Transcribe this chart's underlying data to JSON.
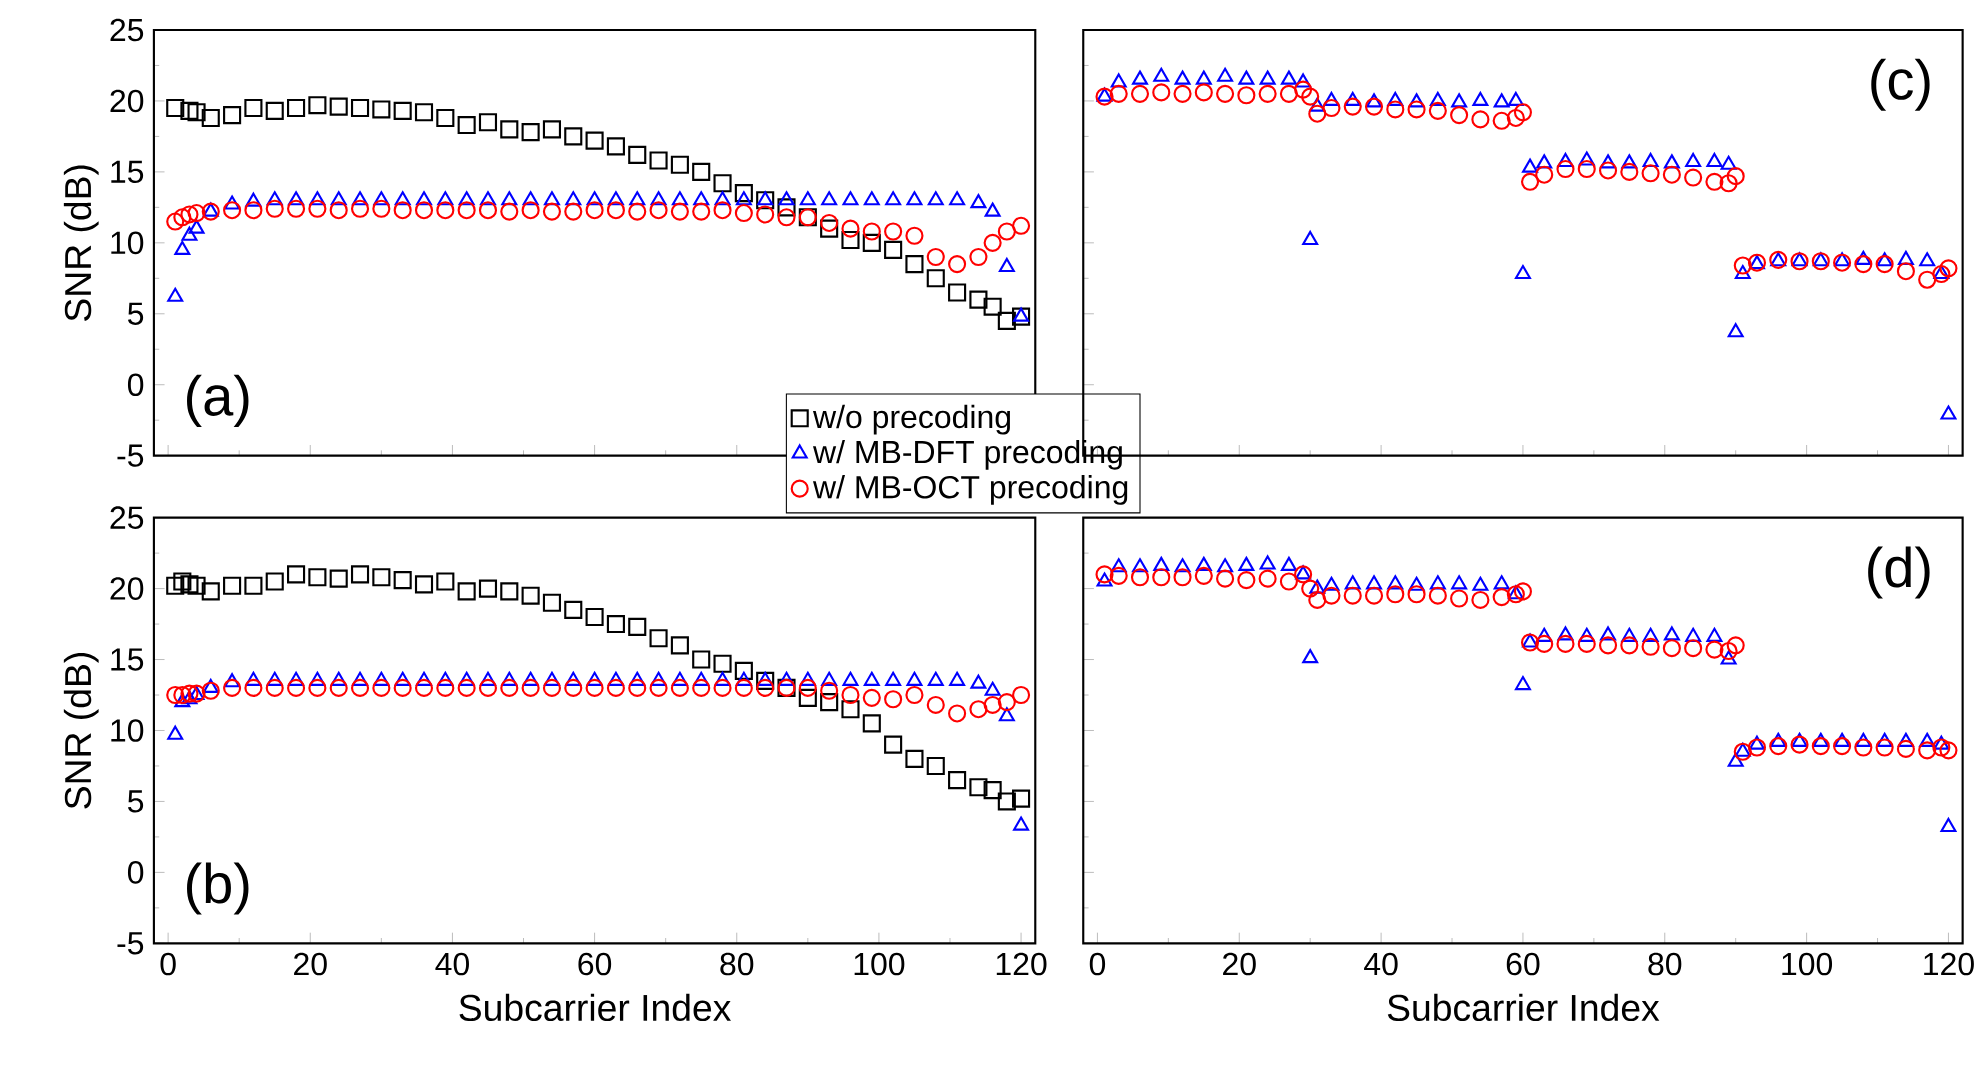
{
  "chart_data": [
    {
      "type": "scatter",
      "ylabel": "SNR (dB)",
      "annotations": [
        "(a)"
      ],
      "xlim": [
        -2,
        122
      ],
      "ylim": [
        -5,
        25
      ],
      "xticks": [
        0,
        20,
        40,
        60,
        80,
        100,
        120
      ],
      "yticks": [
        -5,
        0,
        5,
        10,
        15,
        20,
        25
      ],
      "tick_labels": "y",
      "legend": "bottom right",
      "x": [
        1,
        2,
        3,
        4,
        6,
        9,
        12,
        15,
        18,
        21,
        24,
        27,
        30,
        33,
        36,
        39,
        42,
        45,
        48,
        51,
        54,
        57,
        60,
        63,
        66,
        69,
        72,
        75,
        78,
        81,
        84,
        87,
        90,
        93,
        96,
        99,
        102,
        105,
        108,
        111,
        114,
        116,
        118,
        120
      ],
      "series": [
        {
          "name": "w/o precoding",
          "color": "#000000",
          "marker": "square",
          "values": [
            19.5,
            null,
            19.3,
            19.2,
            18.8,
            19,
            19.5,
            19.3,
            19.5,
            19.7,
            19.6,
            19.5,
            19.4,
            19.3,
            19.2,
            18.8,
            18.3,
            18.5,
            18,
            17.8,
            18,
            17.5,
            17.2,
            16.8,
            16.2,
            15.8,
            15.5,
            15,
            14.2,
            13.5,
            13,
            12.5,
            11.8,
            11,
            10.2,
            10,
            9.5,
            8.5,
            7.5,
            6.5,
            6,
            5.5,
            4.5,
            4.8
          ]
        },
        {
          "name": "w/ MB-DFT precoding",
          "color": "#0000ff",
          "marker": "triangle",
          "values": [
            6.2,
            9.5,
            10.5,
            11,
            12.2,
            12.7,
            12.9,
            13,
            13,
            13,
            13,
            13,
            13,
            13,
            13,
            13,
            13,
            13,
            13,
            13,
            13,
            13,
            13,
            13,
            13,
            13,
            13,
            13,
            13,
            13,
            13,
            13,
            13,
            13,
            13,
            13,
            13,
            13,
            13,
            13,
            12.8,
            12.2,
            8.3,
            4.8
          ]
        },
        {
          "name": "w/ MB-OCT precoding",
          "color": "#ff0000",
          "marker": "circle",
          "values": [
            11.5,
            11.8,
            12,
            12.1,
            12.2,
            12.3,
            12.3,
            12.4,
            12.4,
            12.4,
            12.3,
            12.4,
            12.4,
            12.3,
            12.3,
            12.3,
            12.3,
            12.3,
            12.2,
            12.3,
            12.2,
            12.2,
            12.3,
            12.3,
            12.2,
            12.3,
            12.2,
            12.2,
            12.3,
            12.1,
            12,
            11.8,
            11.8,
            11.4,
            11,
            10.8,
            10.8,
            10.5,
            9,
            8.5,
            9,
            10,
            10.8,
            11.2
          ]
        }
      ]
    },
    {
      "type": "scatter",
      "annotations": [
        "(c)"
      ],
      "xlim": [
        -2,
        122
      ],
      "ylim": [
        -5,
        25
      ],
      "xticks": [
        0,
        20,
        40,
        60,
        80,
        100,
        120
      ],
      "yticks": [
        -5,
        0,
        5,
        10,
        15,
        20,
        25
      ],
      "tick_labels": false,
      "x": [
        1,
        3,
        6,
        9,
        12,
        15,
        18,
        21,
        24,
        27,
        29,
        30,
        31,
        33,
        36,
        39,
        42,
        45,
        48,
        51,
        54,
        57,
        59,
        60,
        61,
        63,
        66,
        69,
        72,
        75,
        78,
        81,
        84,
        87,
        89,
        90,
        91,
        93,
        96,
        99,
        102,
        105,
        108,
        111,
        114,
        117,
        119,
        120
      ],
      "series": [
        {
          "color": "#0000ff",
          "marker": "triangle",
          "values": [
            20.3,
            21.3,
            21.5,
            21.7,
            21.5,
            21.5,
            21.7,
            21.5,
            21.5,
            21.5,
            21.3,
            10.2,
            19.6,
            20,
            20,
            19.9,
            20,
            19.9,
            20,
            19.9,
            20,
            19.9,
            20,
            7.8,
            15.3,
            15.6,
            15.7,
            15.8,
            15.6,
            15.6,
            15.7,
            15.6,
            15.7,
            15.7,
            15.5,
            3.7,
            7.8,
            8.5,
            8.7,
            8.7,
            8.7,
            8.7,
            8.8,
            8.7,
            8.8,
            8.7,
            7.8,
            -2.1
          ]
        },
        {
          "color": "#ff0000",
          "marker": "circle",
          "values": [
            20.3,
            20.5,
            20.5,
            20.6,
            20.5,
            20.6,
            20.5,
            20.4,
            20.5,
            20.5,
            20.8,
            20.3,
            19.1,
            19.5,
            19.6,
            19.6,
            19.4,
            19.4,
            19.3,
            19,
            18.7,
            18.6,
            18.8,
            19.2,
            14.3,
            14.8,
            15.2,
            15.2,
            15.1,
            15,
            14.9,
            14.8,
            14.6,
            14.3,
            14.2,
            14.7,
            8.4,
            8.6,
            8.8,
            8.7,
            8.7,
            8.6,
            8.5,
            8.5,
            8,
            7.4,
            7.8,
            8.2
          ]
        }
      ]
    },
    {
      "type": "scatter",
      "xlabel": "Subcarrier Index",
      "ylabel": "SNR (dB)",
      "annotations": [
        "(b)"
      ],
      "xlim": [
        -2,
        122
      ],
      "ylim": [
        -5,
        25
      ],
      "xticks": [
        0,
        20,
        40,
        60,
        80,
        100,
        120
      ],
      "yticks": [
        -5,
        0,
        5,
        10,
        15,
        20,
        25
      ],
      "x": [
        1,
        2,
        3,
        4,
        6,
        9,
        12,
        15,
        18,
        21,
        24,
        27,
        30,
        33,
        36,
        39,
        42,
        45,
        48,
        51,
        54,
        57,
        60,
        63,
        66,
        69,
        72,
        75,
        78,
        81,
        84,
        87,
        90,
        93,
        96,
        99,
        102,
        105,
        108,
        111,
        114,
        116,
        118,
        120
      ],
      "series": [
        {
          "color": "#000000",
          "marker": "square",
          "values": [
            20.2,
            20.5,
            20.3,
            20.2,
            19.8,
            20.2,
            20.2,
            20.5,
            21,
            20.8,
            20.7,
            21,
            20.8,
            20.6,
            20.3,
            20.5,
            19.8,
            20,
            19.8,
            19.5,
            19,
            18.5,
            18,
            17.5,
            17.3,
            16.5,
            16,
            15,
            14.7,
            14.2,
            13.5,
            13,
            12.3,
            12,
            11.5,
            10.5,
            9,
            8,
            7.5,
            6.5,
            6,
            5.8,
            5,
            5.2
          ]
        },
        {
          "color": "#0000ff",
          "marker": "triangle",
          "values": [
            9.7,
            12,
            12.2,
            12.5,
            13,
            13.4,
            13.5,
            13.5,
            13.5,
            13.5,
            13.5,
            13.5,
            13.5,
            13.5,
            13.5,
            13.5,
            13.5,
            13.5,
            13.5,
            13.5,
            13.5,
            13.5,
            13.5,
            13.5,
            13.5,
            13.5,
            13.5,
            13.5,
            13.5,
            13.5,
            13.5,
            13.5,
            13.5,
            13.5,
            13.5,
            13.5,
            13.5,
            13.5,
            13.5,
            13.5,
            13.3,
            12.8,
            11,
            3.3
          ]
        },
        {
          "color": "#ff0000",
          "marker": "circle",
          "values": [
            12.5,
            12.5,
            12.6,
            12.6,
            12.8,
            13,
            13,
            13,
            13,
            13,
            13,
            13,
            13,
            13,
            13,
            13,
            13,
            13,
            13,
            13,
            13,
            13,
            13,
            13,
            13,
            13,
            13,
            13,
            13,
            13,
            13,
            13,
            13,
            12.8,
            12.5,
            12.3,
            12.2,
            12.5,
            11.8,
            11.2,
            11.5,
            11.8,
            12,
            12.5
          ]
        }
      ]
    },
    {
      "type": "scatter",
      "xlabel": "Subcarrier Index",
      "annotations": [
        "(d)"
      ],
      "xlim": [
        -2,
        122
      ],
      "ylim": [
        -5,
        25
      ],
      "xticks": [
        0,
        20,
        40,
        60,
        80,
        100,
        120
      ],
      "yticks": [
        -5,
        0,
        5,
        10,
        15,
        20,
        25
      ],
      "tick_labels": "x",
      "x": [
        1,
        3,
        6,
        9,
        12,
        15,
        18,
        21,
        24,
        27,
        29,
        30,
        31,
        33,
        36,
        39,
        42,
        45,
        48,
        51,
        54,
        57,
        59,
        60,
        61,
        63,
        66,
        69,
        72,
        75,
        78,
        81,
        84,
        87,
        89,
        90,
        91,
        93,
        96,
        99,
        102,
        105,
        108,
        111,
        114,
        117,
        119,
        120
      ],
      "series": [
        {
          "color": "#0000ff",
          "marker": "triangle",
          "values": [
            20.5,
            21.5,
            21.5,
            21.6,
            21.5,
            21.6,
            21.5,
            21.6,
            21.7,
            21.6,
            21,
            15.1,
            20,
            20.2,
            20.3,
            20.3,
            20.3,
            20.2,
            20.3,
            20.3,
            20.2,
            20.3,
            19.6,
            13.2,
            16.2,
            16.6,
            16.7,
            16.6,
            16.7,
            16.6,
            16.6,
            16.7,
            16.6,
            16.6,
            15,
            7.8,
            8.5,
            9,
            9.2,
            9.2,
            9.2,
            9.2,
            9.2,
            9.2,
            9.2,
            9.2,
            9,
            3.2
          ]
        },
        {
          "color": "#ff0000",
          "marker": "circle",
          "values": [
            21,
            20.9,
            20.8,
            20.8,
            20.8,
            20.9,
            20.7,
            20.6,
            20.7,
            20.5,
            21,
            20,
            19.2,
            19.5,
            19.5,
            19.5,
            19.6,
            19.6,
            19.5,
            19.3,
            19.2,
            19.4,
            19.6,
            19.8,
            16.2,
            16.1,
            16.1,
            16.1,
            16,
            16,
            15.9,
            15.8,
            15.8,
            15.7,
            15.6,
            16,
            8.5,
            8.8,
            8.9,
            9,
            8.9,
            8.9,
            8.8,
            8.8,
            8.7,
            8.6,
            8.8,
            8.6
          ]
        }
      ]
    }
  ]
}
